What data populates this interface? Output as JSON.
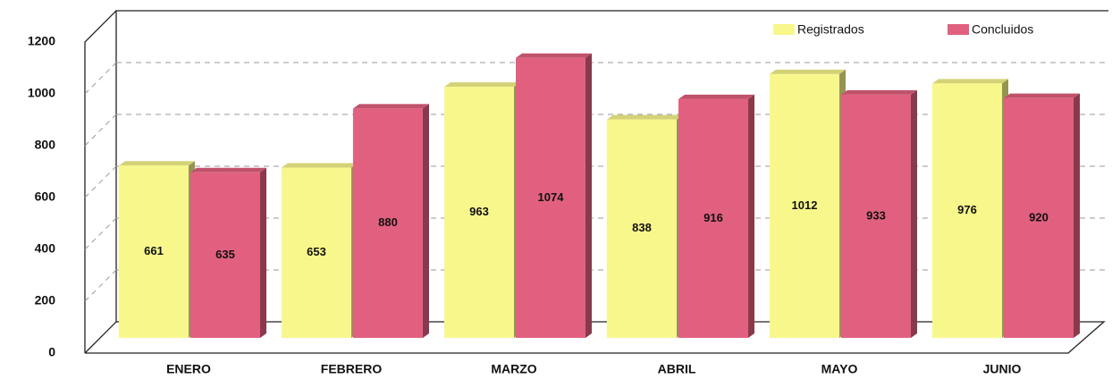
{
  "chart_data": {
    "type": "bar",
    "categories": [
      "ENERO",
      "FEBRERO",
      "MARZO",
      "ABRIL",
      "MAYO",
      "JUNIO"
    ],
    "series": [
      {
        "name": "Registrados",
        "color": "#f8f78c",
        "values": [
          661,
          653,
          963,
          838,
          1012,
          976
        ]
      },
      {
        "name": "Concluidos",
        "color": "#e2607f",
        "values": [
          635,
          880,
          1074,
          916,
          933,
          920
        ]
      }
    ],
    "ylim": [
      0,
      1200
    ],
    "yticks": [
      0,
      200,
      400,
      600,
      800,
      1000,
      1200
    ],
    "grid": true,
    "legend": "top-right"
  }
}
